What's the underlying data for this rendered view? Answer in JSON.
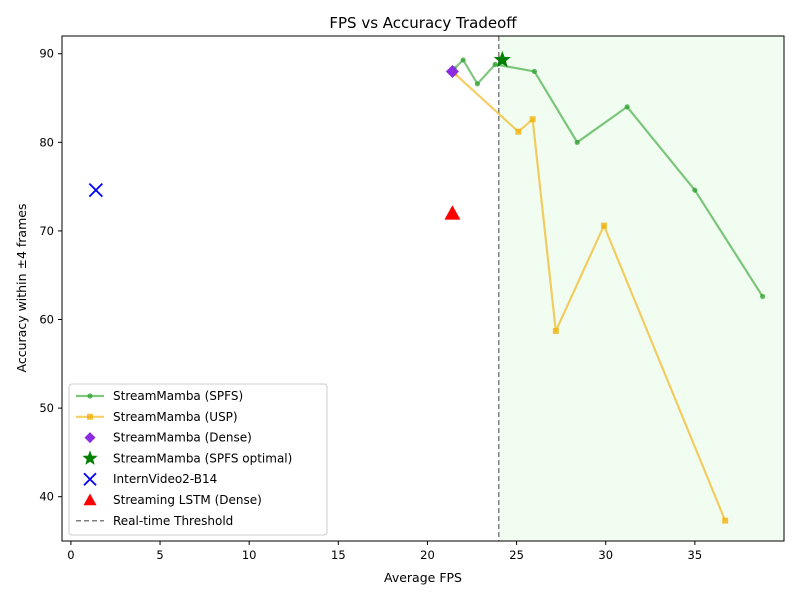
{
  "chart_data": {
    "type": "scatter",
    "title": "FPS vs Accuracy Tradeoff",
    "xlabel": "Average FPS",
    "ylabel": "Accuracy within ±4 frames",
    "xlim": [
      -0.5,
      40
    ],
    "ylim": [
      35,
      92
    ],
    "xticks": [
      0,
      5,
      10,
      15,
      20,
      25,
      30,
      35
    ],
    "yticks": [
      40,
      50,
      60,
      70,
      80,
      90
    ],
    "grid": false,
    "legend_position": "lower-left",
    "realtime_threshold": 24,
    "realtime_region": "x >= 24 shaded light green",
    "series": [
      {
        "name": "StreamMamba (SPFS)",
        "kind": "line",
        "marker": "circle",
        "color": "#2ca02c",
        "points": [
          [
            21.5,
            88.3
          ],
          [
            22.0,
            89.3
          ],
          [
            22.8,
            86.6
          ],
          [
            23.8,
            88.8
          ],
          [
            26.0,
            88.0
          ],
          [
            28.4,
            80.0
          ],
          [
            31.2,
            84.0
          ],
          [
            35.0,
            74.6
          ],
          [
            38.8,
            62.6
          ]
        ]
      },
      {
        "name": "StreamMamba (USP)",
        "kind": "line",
        "marker": "square",
        "color": "#f0ad00",
        "points": [
          [
            21.5,
            87.8
          ],
          [
            25.1,
            81.2
          ],
          [
            25.9,
            82.6
          ],
          [
            27.2,
            58.7
          ],
          [
            29.9,
            70.6
          ],
          [
            36.7,
            37.3
          ]
        ]
      },
      {
        "name": "StreamMamba (Dense)",
        "kind": "point",
        "marker": "diamond",
        "color": "#8a2be2",
        "points": [
          [
            21.4,
            88.0
          ]
        ]
      },
      {
        "name": "StreamMamba (SPFS optimal)",
        "kind": "point",
        "marker": "star",
        "color": "#008000",
        "points": [
          [
            24.2,
            89.3
          ]
        ]
      },
      {
        "name": "InternVideo2-B14",
        "kind": "point",
        "marker": "x",
        "color": "#0000ff",
        "points": [
          [
            1.4,
            74.6
          ]
        ]
      },
      {
        "name": "Streaming LSTM (Dense)",
        "kind": "point",
        "marker": "triangle",
        "color": "#ff0000",
        "points": [
          [
            21.4,
            72.0
          ]
        ]
      }
    ],
    "threshold_legend": "Real-time Threshold",
    "threshold_color": "#808080"
  }
}
